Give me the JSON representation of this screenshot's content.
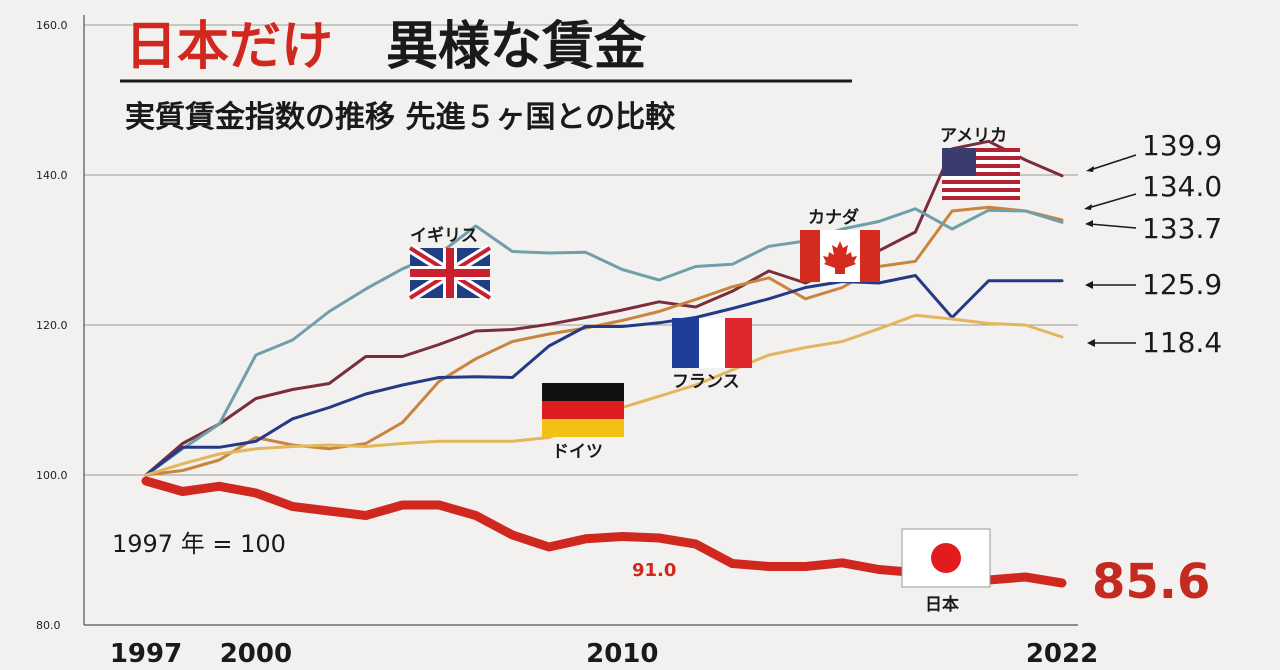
{
  "title": {
    "red_part": "日本だけ",
    "black_part": "異様な賃金"
  },
  "subtitle": "実質賃金指数の推移 先進５ヶ国との比較",
  "base_note": "1997 年 = 100",
  "chart_data": {
    "type": "line",
    "ylim": [
      80,
      160
    ],
    "xlim": [
      1997,
      2022
    ],
    "yticks": [
      "80.0",
      "100.0",
      "120.0",
      "140.0",
      "160.0"
    ],
    "xticks": [
      "1997",
      "2000",
      "2010",
      "2022"
    ],
    "grid": true,
    "series": [
      {
        "name": "アメリカ",
        "color": "#7a2d3a",
        "x": [
          1997,
          1998,
          1999,
          2000,
          2001,
          2002,
          2003,
          2004,
          2005,
          2006,
          2007,
          2008,
          2009,
          2010,
          2011,
          2012,
          2013,
          2014,
          2015,
          2016,
          2017,
          2018,
          2019,
          2020,
          2021,
          2022
        ],
        "values": [
          100,
          104.2,
          106.8,
          110.2,
          111.4,
          112.2,
          115.8,
          115.8,
          117.4,
          119.2,
          119.4,
          120.1,
          121.0,
          122.0,
          123.1,
          122.4,
          124.5,
          127.2,
          125.6,
          127.8,
          129.9,
          132.4,
          143.5,
          144.5,
          142.0,
          139.9
        ]
      },
      {
        "name": "カナダ",
        "color": "#c9843e",
        "x": [
          1997,
          1998,
          1999,
          2000,
          2001,
          2002,
          2003,
          2004,
          2005,
          2006,
          2007,
          2008,
          2009,
          2010,
          2011,
          2012,
          2013,
          2014,
          2015,
          2016,
          2017,
          2018,
          2019,
          2020,
          2021,
          2022
        ],
        "values": [
          100,
          100.6,
          102.0,
          105.0,
          104.0,
          103.5,
          104.2,
          107.0,
          112.5,
          115.5,
          117.8,
          118.8,
          119.6,
          120.6,
          121.8,
          123.4,
          125.1,
          126.3,
          123.5,
          125.0,
          127.8,
          128.5,
          135.2,
          135.7,
          135.2,
          134.0
        ]
      },
      {
        "name": "イギリス",
        "color": "#6f9fa8",
        "x": [
          1997,
          1998,
          1999,
          2000,
          2001,
          2002,
          2003,
          2004,
          2005,
          2006,
          2007,
          2008,
          2009,
          2010,
          2011,
          2012,
          2013,
          2014,
          2015,
          2016,
          2017,
          2018,
          2019,
          2020,
          2021,
          2022
        ],
        "values": [
          100,
          103.5,
          106.8,
          116.0,
          118.0,
          121.8,
          124.8,
          127.5,
          129.5,
          133.2,
          129.8,
          129.6,
          129.7,
          127.4,
          126.0,
          127.8,
          128.1,
          130.5,
          131.2,
          132.8,
          133.8,
          135.5,
          132.8,
          135.3,
          135.2,
          133.7
        ]
      },
      {
        "name": "フランス",
        "color": "#243a86",
        "x": [
          1997,
          1998,
          1999,
          2000,
          2001,
          2002,
          2003,
          2004,
          2005,
          2006,
          2007,
          2008,
          2009,
          2010,
          2011,
          2012,
          2013,
          2014,
          2015,
          2016,
          2017,
          2018,
          2019,
          2020,
          2021,
          2022
        ],
        "values": [
          100,
          103.7,
          103.7,
          104.5,
          107.5,
          109.0,
          110.8,
          112.0,
          113.0,
          113.1,
          113.0,
          117.2,
          119.8,
          119.8,
          120.3,
          121.0,
          122.2,
          123.5,
          125.0,
          125.8,
          125.6,
          126.6,
          121.0,
          125.9,
          125.9,
          125.9
        ]
      },
      {
        "name": "ドイツ",
        "color": "#e2b65a",
        "x": [
          1997,
          1998,
          1999,
          2000,
          2001,
          2002,
          2003,
          2004,
          2005,
          2006,
          2007,
          2008,
          2009,
          2010,
          2011,
          2012,
          2013,
          2014,
          2015,
          2016,
          2017,
          2018,
          2019,
          2020,
          2021,
          2022
        ],
        "values": [
          100,
          101.5,
          102.8,
          103.5,
          103.8,
          104.0,
          103.8,
          104.2,
          104.5,
          104.5,
          104.5,
          105.0,
          107.0,
          109.0,
          110.5,
          112.0,
          114.0,
          116.0,
          117.0,
          117.8,
          119.5,
          121.3,
          120.8,
          120.2,
          120.0,
          118.4
        ]
      },
      {
        "name": "日本",
        "color": "#d0281e",
        "x": [
          1997,
          1998,
          1999,
          2000,
          2001,
          2002,
          2003,
          2004,
          2005,
          2006,
          2007,
          2008,
          2009,
          2010,
          2011,
          2012,
          2013,
          2014,
          2015,
          2016,
          2017,
          2018,
          2019,
          2020,
          2021,
          2022
        ],
        "values": [
          99.2,
          97.8,
          98.5,
          97.6,
          95.8,
          95.2,
          94.6,
          96.0,
          96.0,
          94.6,
          92.0,
          90.4,
          91.5,
          91.8,
          91.6,
          90.8,
          88.2,
          87.8,
          87.8,
          88.3,
          87.4,
          87.0,
          85.8,
          86.0,
          86.4,
          85.6
        ]
      }
    ],
    "end_labels": [
      "139.9",
      "134.0",
      "133.7",
      "125.9",
      "118.4"
    ],
    "japan_label": "91.0",
    "japan_end": "85.6"
  }
}
